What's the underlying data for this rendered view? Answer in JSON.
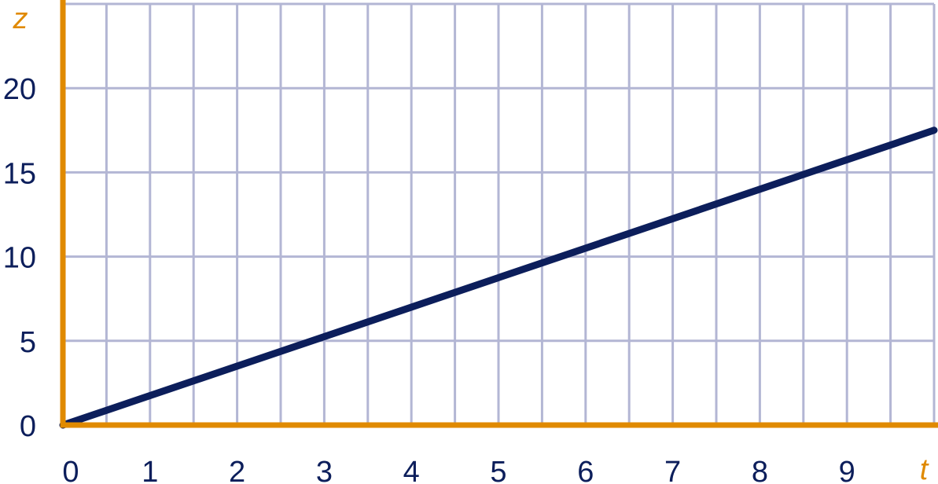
{
  "chart_data": {
    "type": "line",
    "title": "",
    "xlabel": "t",
    "ylabel": "z",
    "xlim": [
      0,
      10
    ],
    "ylim": [
      0,
      25
    ],
    "x_ticks": [
      0,
      1,
      2,
      3,
      4,
      5,
      6,
      7,
      8,
      9
    ],
    "y_ticks": [
      0,
      5,
      10,
      15,
      20
    ],
    "x_grid_step": 0.5,
    "y_grid_step": 5,
    "grid": true,
    "series": [
      {
        "x": [
          0,
          10
        ],
        "y": [
          0,
          17.5
        ]
      }
    ],
    "colors": {
      "axis": "#e08a00",
      "grid": "#b3b6d4",
      "line": "#0c1e5b",
      "tick_label": "#0c1e5b",
      "axis_label": "#e08a00"
    }
  }
}
